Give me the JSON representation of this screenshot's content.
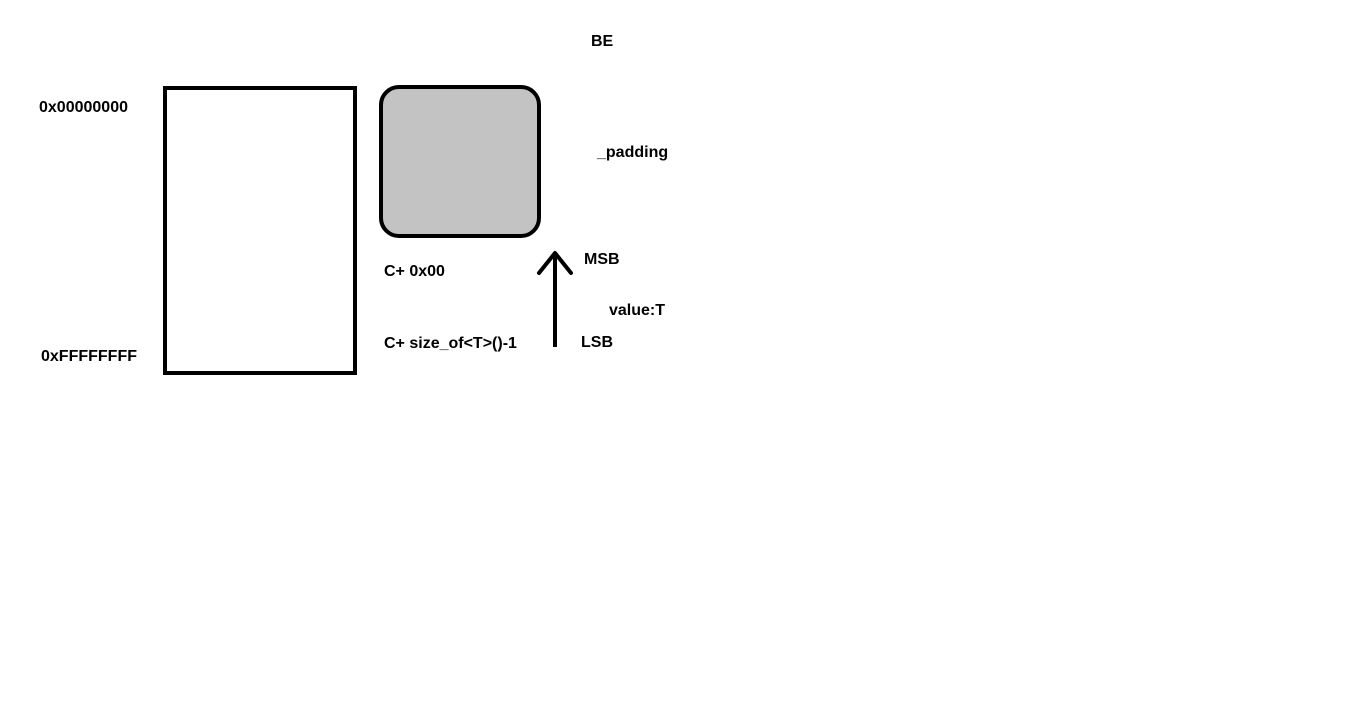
{
  "diagram": {
    "title": "BE",
    "memory": {
      "start_address": "0x00000000",
      "end_address": "0xFFFFFFFF"
    },
    "padding_block": {
      "label": "_padding",
      "fill_color": "#c3c3c3"
    },
    "offsets": {
      "first": "C+ 0x00",
      "last": "C+ size_of<T>()-1"
    },
    "byte_order": {
      "msb": "MSB",
      "lsb": "LSB"
    },
    "value_label": "value:T",
    "colors": {
      "stroke": "#000000",
      "background": "#ffffff"
    }
  }
}
